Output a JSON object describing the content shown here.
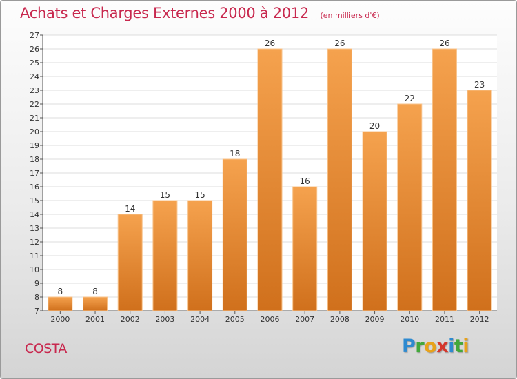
{
  "chart_data": {
    "type": "bar",
    "title": "Achats et Charges Externes 2000 à 2012",
    "subtitle": "(en milliers d'€)",
    "categories": [
      "2000",
      "2001",
      "2002",
      "2003",
      "2004",
      "2005",
      "2006",
      "2007",
      "2008",
      "2009",
      "2010",
      "2011",
      "2012"
    ],
    "values": [
      8,
      8,
      14,
      15,
      15,
      18,
      26,
      16,
      26,
      20,
      22,
      26,
      23
    ],
    "ylim": [
      7,
      27
    ],
    "yticks": [
      7,
      8,
      9,
      10,
      11,
      12,
      13,
      14,
      15,
      16,
      17,
      18,
      19,
      20,
      21,
      22,
      23,
      24,
      25,
      26,
      27
    ],
    "grid": true,
    "bar_color_top": "#f5a24e",
    "bar_color_bottom": "#d0701c",
    "bar_edge": "#f7c28a"
  },
  "commune": "COSTA",
  "logo": {
    "text": "Proxiti",
    "letters": [
      {
        "ch": "P",
        "color": "#2e8ad0"
      },
      {
        "ch": "r",
        "color": "#43a83b"
      },
      {
        "ch": "o",
        "color": "#e8a21a"
      },
      {
        "ch": "x",
        "color": "#d4372c"
      },
      {
        "ch": "i",
        "color": "#2e8ad0"
      },
      {
        "ch": "t",
        "color": "#43a83b"
      },
      {
        "ch": "i",
        "color": "#e8a21a"
      }
    ]
  }
}
